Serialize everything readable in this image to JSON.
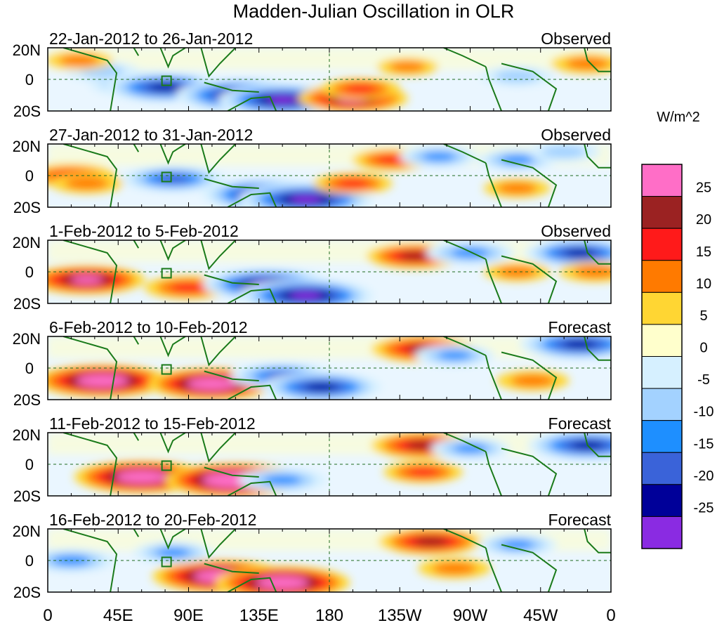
{
  "chart_data": {
    "type": "heatmap",
    "title": "Madden-Julian Oscillation in OLR",
    "units_label": "W/m^2",
    "x_ticks": [
      "0",
      "45E",
      "90E",
      "135E",
      "180",
      "135W",
      "90W",
      "45W",
      "0"
    ],
    "y_ticks": [
      "20N",
      "0",
      "20S"
    ],
    "colorbar": {
      "levels": [
        "25",
        "20",
        "15",
        "10",
        "5",
        "0",
        "-5",
        "-10",
        "-15",
        "-20",
        "-25"
      ],
      "colors": [
        "#ff6ec7",
        "#9b2222",
        "#ff1a1a",
        "#ff7a00",
        "#ffd633",
        "#ffffcc",
        "#d6f0ff",
        "#a3d2ff",
        "#1e8fff",
        "#3a63d9",
        "#000099",
        "#8a2be2"
      ]
    },
    "panels": [
      {
        "dates": "22-Jan-2012 to 26-Jan-2012",
        "label": "Observed",
        "anomalies": [
          {
            "lon": 60,
            "lat": -3,
            "value": -20
          },
          {
            "lon": 75,
            "lat": -5,
            "value": -25
          },
          {
            "lon": 125,
            "lat": -10,
            "value": -30
          },
          {
            "lon": 150,
            "lat": -13,
            "value": -28
          },
          {
            "lon": 195,
            "lat": -12,
            "value": 22
          },
          {
            "lon": 200,
            "lat": -6,
            "value": 12
          },
          {
            "lon": 35,
            "lat": 5,
            "value": -10
          },
          {
            "lon": 20,
            "lat": 12,
            "value": 8
          },
          {
            "lon": 230,
            "lat": 8,
            "value": 6
          },
          {
            "lon": 300,
            "lat": 2,
            "value": -10
          },
          {
            "lon": 345,
            "lat": 10,
            "value": 10
          }
        ]
      },
      {
        "dates": "27-Jan-2012 to 31-Jan-2012",
        "label": "Observed",
        "anomalies": [
          {
            "lon": 15,
            "lat": 0,
            "value": 15
          },
          {
            "lon": 25,
            "lat": -5,
            "value": 10
          },
          {
            "lon": 80,
            "lat": -2,
            "value": -20
          },
          {
            "lon": 140,
            "lat": -12,
            "value": -28
          },
          {
            "lon": 165,
            "lat": -15,
            "value": -30
          },
          {
            "lon": 195,
            "lat": -5,
            "value": 12
          },
          {
            "lon": 220,
            "lat": 10,
            "value": 12
          },
          {
            "lon": 250,
            "lat": 12,
            "value": -12
          },
          {
            "lon": 300,
            "lat": 10,
            "value": -12
          },
          {
            "lon": 300,
            "lat": -8,
            "value": 8
          },
          {
            "lon": 330,
            "lat": 15,
            "value": -10
          }
        ]
      },
      {
        "dates": "1-Feb-2012 to 5-Feb-2012",
        "label": "Observed",
        "anomalies": [
          {
            "lon": 25,
            "lat": -5,
            "value": 24
          },
          {
            "lon": 90,
            "lat": -10,
            "value": 15
          },
          {
            "lon": 140,
            "lat": -8,
            "value": -28
          },
          {
            "lon": 165,
            "lat": -15,
            "value": -30
          },
          {
            "lon": 235,
            "lat": 10,
            "value": 18
          },
          {
            "lon": 270,
            "lat": 12,
            "value": -15
          },
          {
            "lon": 300,
            "lat": 0,
            "value": 8
          },
          {
            "lon": 340,
            "lat": 12,
            "value": -22
          },
          {
            "lon": 350,
            "lat": 0,
            "value": 10
          }
        ]
      },
      {
        "dates": "6-Feb-2012 to 10-Feb-2012",
        "label": "Forecast",
        "anomalies": [
          {
            "lon": 35,
            "lat": -8,
            "value": 30
          },
          {
            "lon": 105,
            "lat": -10,
            "value": 28
          },
          {
            "lon": 150,
            "lat": -5,
            "value": -20
          },
          {
            "lon": 175,
            "lat": -12,
            "value": -25
          },
          {
            "lon": 240,
            "lat": 12,
            "value": 20
          },
          {
            "lon": 260,
            "lat": 8,
            "value": -12
          },
          {
            "lon": 340,
            "lat": 15,
            "value": -25
          },
          {
            "lon": 310,
            "lat": -8,
            "value": 10
          }
        ]
      },
      {
        "dates": "11-Feb-2012 to 15-Feb-2012",
        "label": "Forecast",
        "anomalies": [
          {
            "lon": 60,
            "lat": -8,
            "value": 30
          },
          {
            "lon": 120,
            "lat": -10,
            "value": 32
          },
          {
            "lon": 150,
            "lat": -10,
            "value": -15
          },
          {
            "lon": 240,
            "lat": 12,
            "value": 20
          },
          {
            "lon": 240,
            "lat": -5,
            "value": 12
          },
          {
            "lon": 270,
            "lat": 10,
            "value": -12
          },
          {
            "lon": 345,
            "lat": 12,
            "value": -25
          }
        ]
      },
      {
        "dates": "16-Feb-2012 to 20-Feb-2012",
        "label": "Forecast",
        "anomalies": [
          {
            "lon": 110,
            "lat": -10,
            "value": 30
          },
          {
            "lon": 150,
            "lat": -14,
            "value": 30
          },
          {
            "lon": 80,
            "lat": 5,
            "value": -12
          },
          {
            "lon": 245,
            "lat": 12,
            "value": 20
          },
          {
            "lon": 260,
            "lat": -5,
            "value": 10
          },
          {
            "lon": 300,
            "lat": 10,
            "value": -12
          },
          {
            "lon": 15,
            "lat": 0,
            "value": -15
          }
        ]
      }
    ]
  }
}
